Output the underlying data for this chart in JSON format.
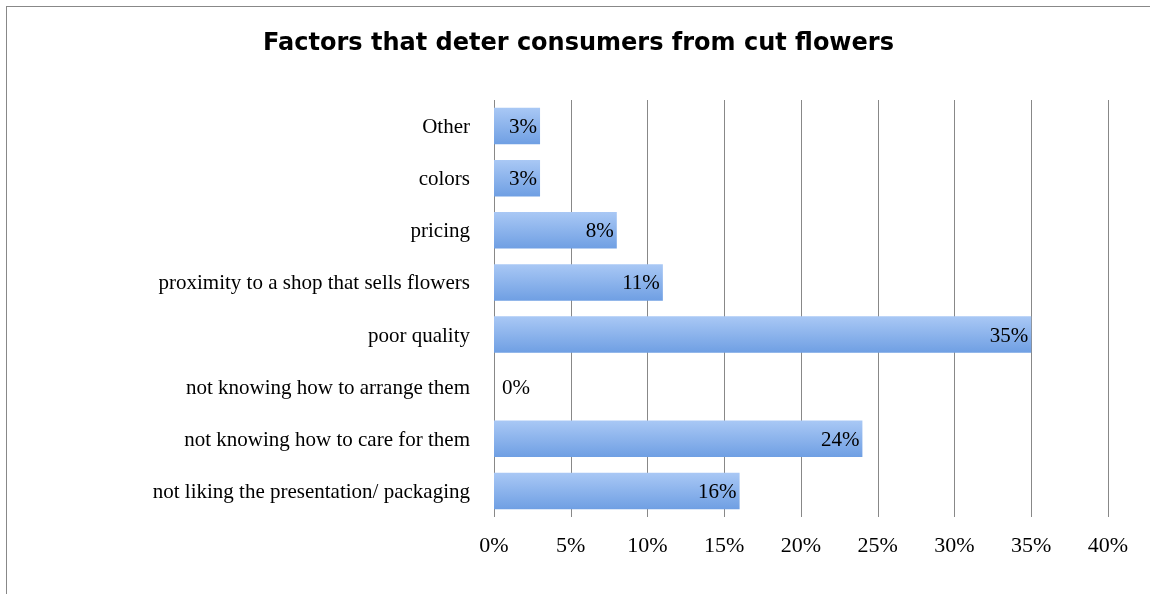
{
  "chart_data": {
    "type": "bar",
    "orientation": "horizontal",
    "title": "Factors that deter consumers from cut flowers",
    "categories": [
      "Other",
      "colors",
      "pricing",
      "proximity to a shop that sells flowers",
      "poor quality",
      "not knowing how to arrange them",
      "not knowing how to care for them",
      "not liking the presentation/ packaging"
    ],
    "values": [
      3,
      3,
      8,
      11,
      35,
      0,
      24,
      16
    ],
    "value_labels": [
      "3%",
      "3%",
      "8%",
      "11%",
      "35%",
      "0%",
      "24%",
      "16%"
    ],
    "color": "#6f9fe3",
    "xlim": [
      0,
      40
    ],
    "xticks": [
      {
        "value": 0,
        "label": "0%"
      },
      {
        "value": 5,
        "label": "5%"
      },
      {
        "value": 10,
        "label": "10%"
      },
      {
        "value": 15,
        "label": "15%"
      },
      {
        "value": 20,
        "label": "20%"
      },
      {
        "value": 25,
        "label": "25%"
      },
      {
        "value": 30,
        "label": "30%"
      },
      {
        "value": 35,
        "label": "35%"
      },
      {
        "value": 40,
        "label": "40%"
      }
    ],
    "grid": "x"
  }
}
